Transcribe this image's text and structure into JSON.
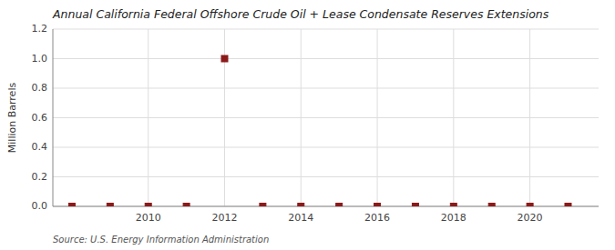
{
  "chart_data": {
    "type": "scatter",
    "title": "Annual California Federal Offshore Crude Oil + Lease Condensate Reserves Extensions",
    "ylabel": "Million Barrels",
    "source": "Source: U.S. Energy Information Administration",
    "x": [
      2008,
      2009,
      2010,
      2011,
      2012,
      2013,
      2014,
      2015,
      2016,
      2017,
      2018,
      2019,
      2020,
      2021
    ],
    "values": [
      0.0,
      0.0,
      0.0,
      0.0,
      1.0,
      0.0,
      0.0,
      0.0,
      0.0,
      0.0,
      0.0,
      0.0,
      0.0,
      0.0
    ],
    "color": "#8b1a1a",
    "marker": "square",
    "xlim": [
      2007.5,
      2021.8
    ],
    "xticks": [
      2010,
      2012,
      2014,
      2016,
      2018,
      2020
    ],
    "ylim": [
      0.0,
      1.2
    ],
    "yticks": [
      {
        "value": 0.0,
        "label": "0.0"
      },
      0.2,
      0.4,
      0.6,
      0.8,
      {
        "value": 1.0,
        "label": "1.0"
      },
      1.2
    ],
    "grid": true
  }
}
